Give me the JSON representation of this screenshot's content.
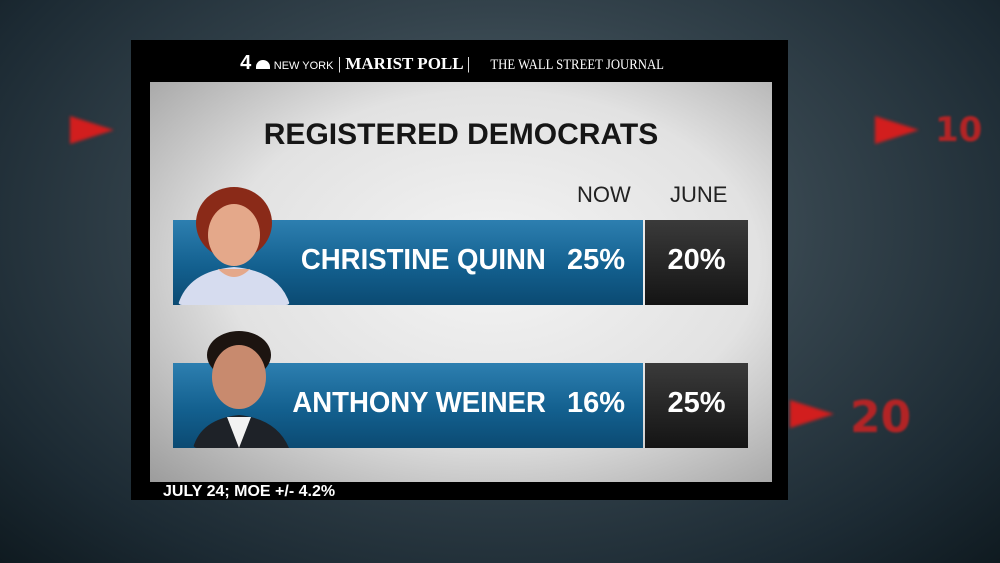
{
  "header": {
    "station_number": "4",
    "station_name": "NEW YORK",
    "pollster": "MARIST POLL",
    "partner": "THE WALL STREET JOURNAL"
  },
  "background": {
    "numbers": [
      "10",
      "20"
    ]
  },
  "chart_data": {
    "type": "table",
    "title": "REGISTERED DEMOCRATS",
    "columns": [
      "NOW",
      "JUNE"
    ],
    "rows": [
      {
        "name": "CHRISTINE QUINN",
        "now": "25%",
        "june": "20%"
      },
      {
        "name": "ANTHONY WEINER",
        "now": "16%",
        "june": "25%"
      }
    ],
    "colors": {
      "bar": "#13608f",
      "june_cell": "#1e1e1e"
    }
  },
  "footer": {
    "note": "JULY 24; MOE +/- 4.2%"
  }
}
